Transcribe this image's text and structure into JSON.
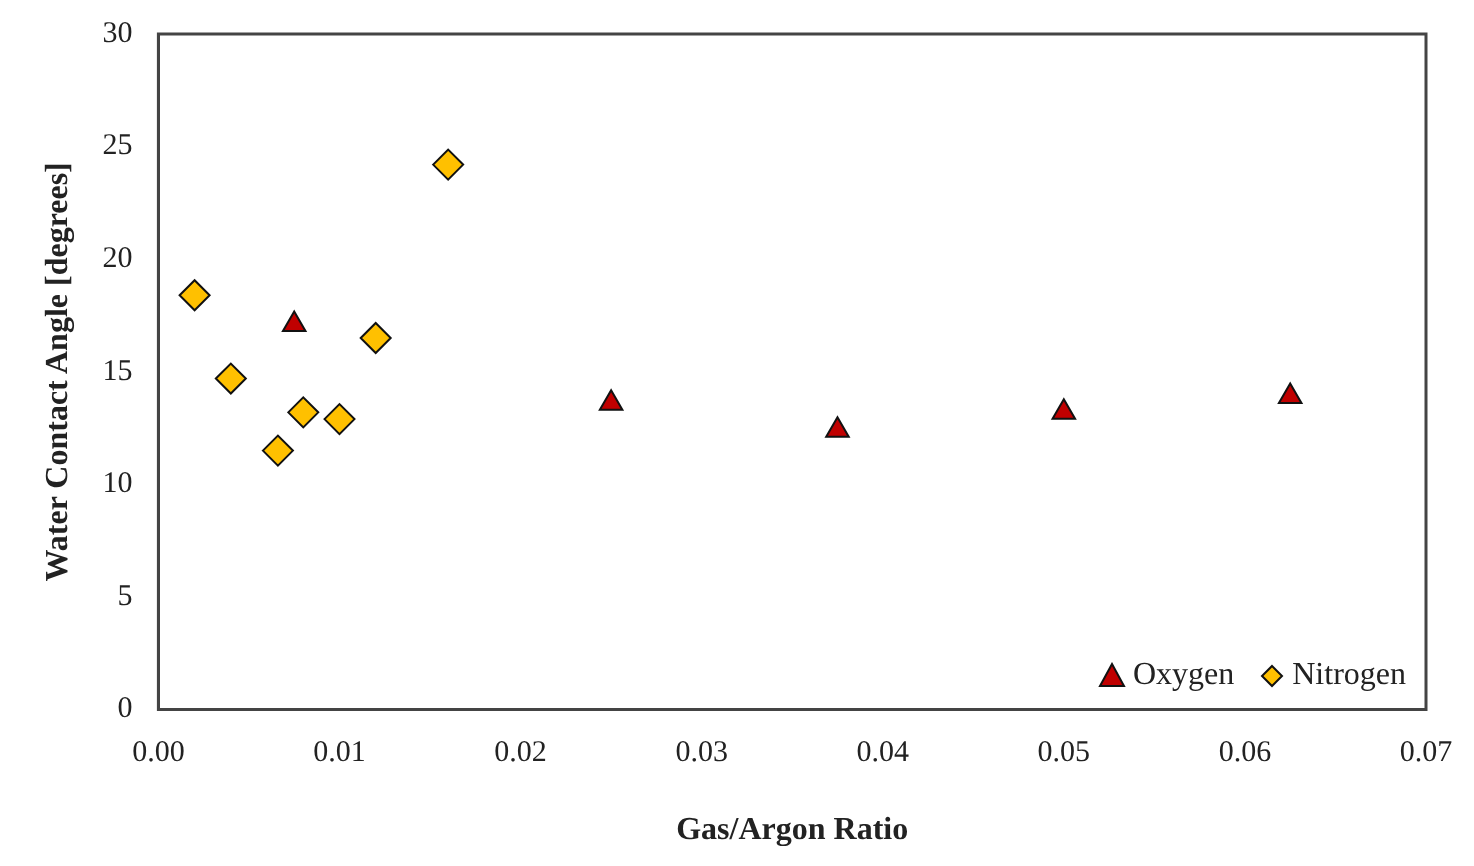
{
  "chart_data": {
    "type": "scatter",
    "xlabel": "Gas/Argon Ratio",
    "ylabel": "Water Contact Angle [degrees]",
    "xlim": [
      0,
      0.07
    ],
    "xticks": [
      {
        "value": 0,
        "label": "0.00"
      },
      {
        "value": 0.01,
        "label": "0.01"
      },
      {
        "value": 0.02,
        "label": "0.02"
      },
      {
        "value": 0.03,
        "label": "0.03"
      },
      {
        "value": 0.04,
        "label": "0.04"
      },
      {
        "value": 0.05,
        "label": "0.05"
      },
      {
        "value": 0.06,
        "label": "0.06"
      },
      {
        "value": 0.07,
        "label": "0.07"
      }
    ],
    "ylim": [
      0,
      30
    ],
    "yticks": [
      0,
      5,
      10,
      15,
      20,
      25,
      30
    ],
    "grid": false,
    "legend": "bottom right",
    "series": [
      {
        "name": "Oxygen",
        "color": "#c00000",
        "marker": "triangle",
        "x": [
          0.0075,
          0.025,
          0.0375,
          0.05,
          0.0625
        ],
        "values": [
          17.1,
          13.6,
          12.4,
          13.2,
          13.9
        ]
      },
      {
        "name": "Nitrogen",
        "color": "#ffc000",
        "marker": "diamond",
        "x": [
          0.002,
          0.004,
          0.0066,
          0.008,
          0.01,
          0.012,
          0.016
        ],
        "values": [
          18.4,
          14.7,
          11.5,
          13.2,
          12.9,
          16.5,
          24.2
        ]
      }
    ]
  }
}
